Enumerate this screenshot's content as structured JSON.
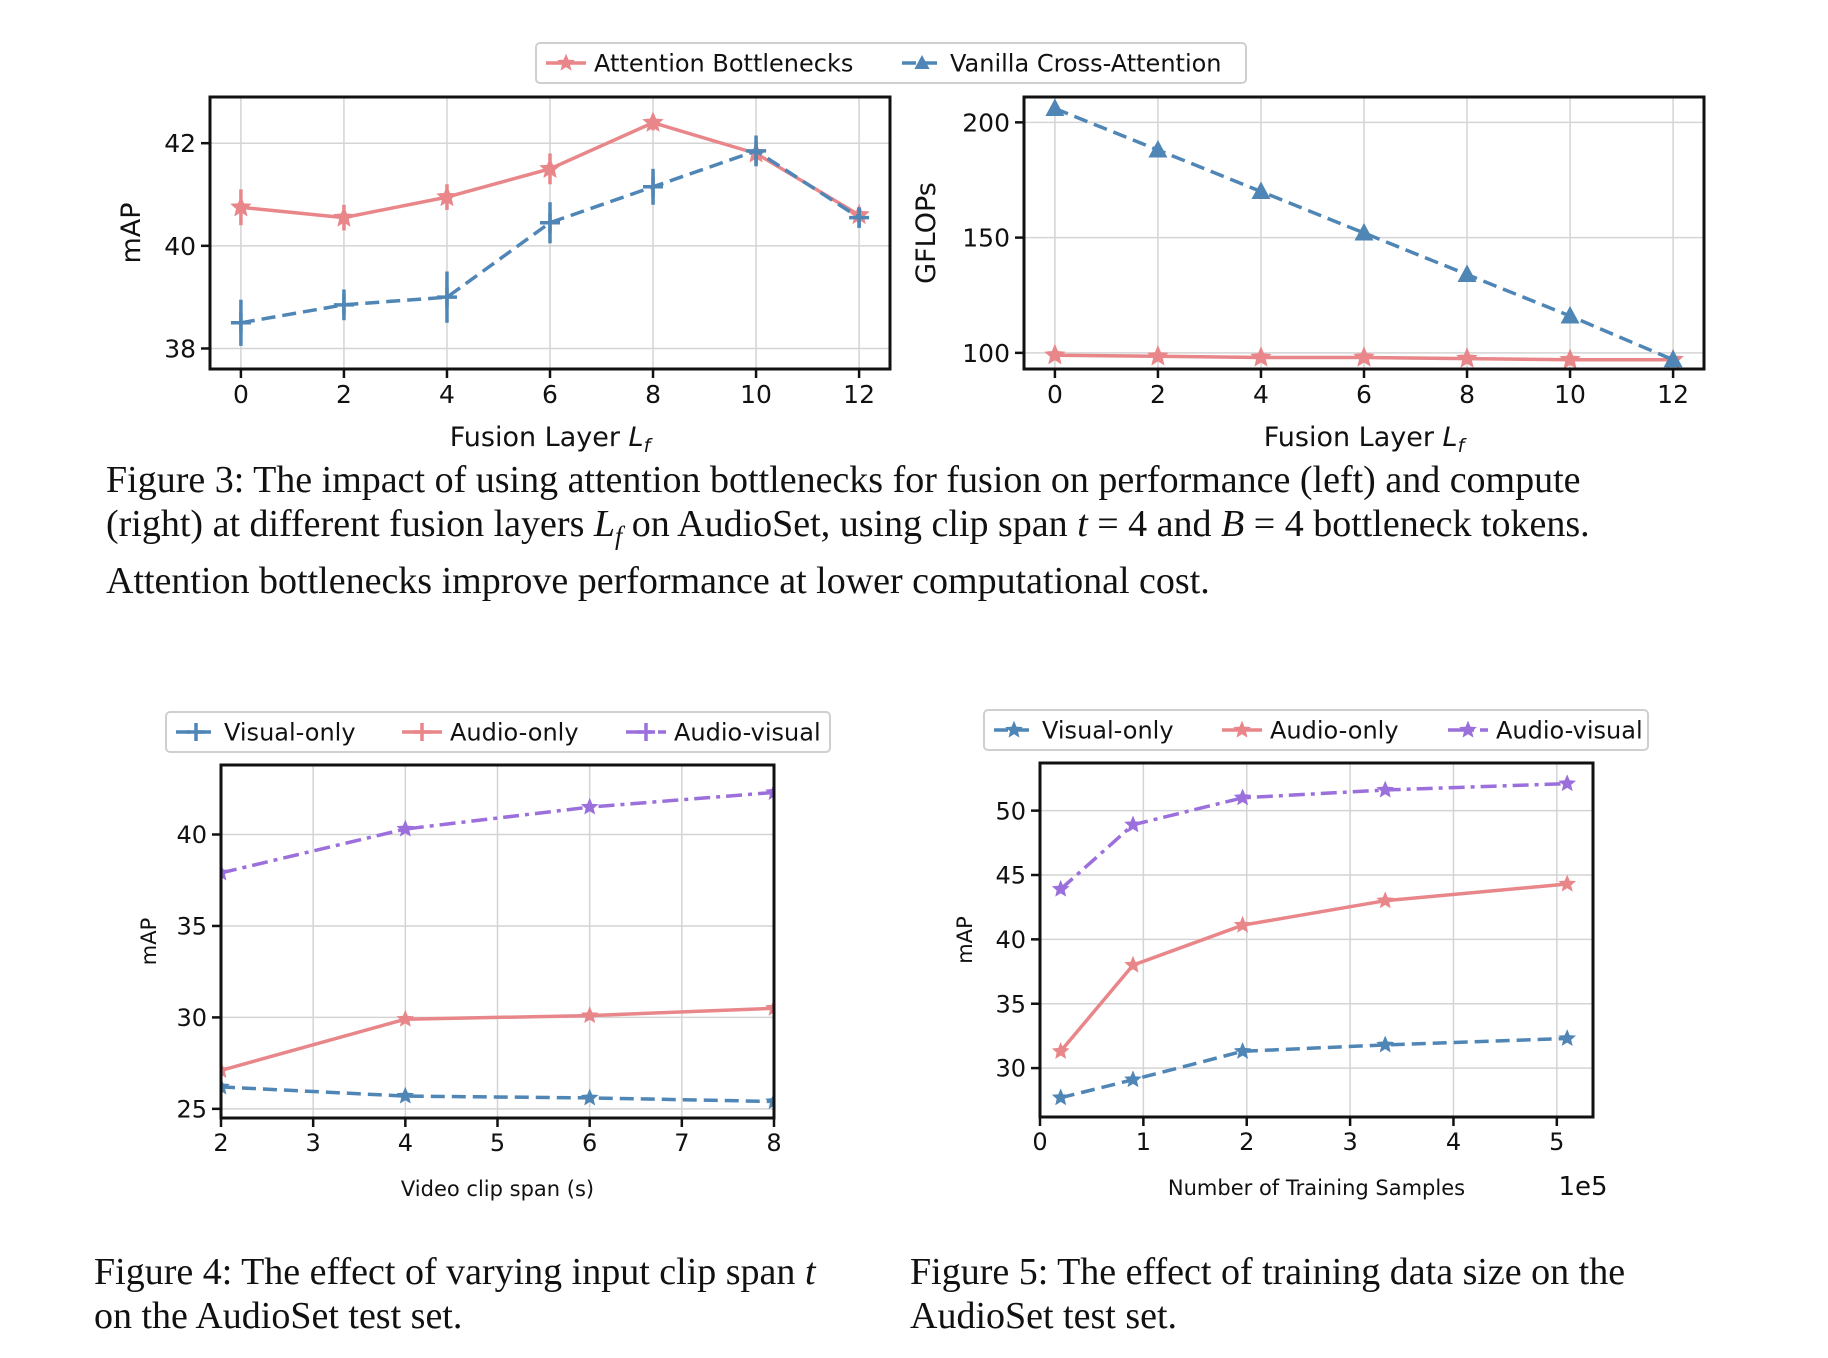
{
  "chart_data": [
    {
      "type": "line",
      "id": "fig3-left",
      "xlabel": "Fusion Layer L_f",
      "ylabel": "mAP",
      "x": [
        0,
        2,
        4,
        6,
        8,
        10,
        12
      ],
      "xticks": [
        "0",
        "2",
        "4",
        "6",
        "8",
        "10",
        "12"
      ],
      "yticks": [
        "38",
        "40",
        "42"
      ],
      "xlim": [
        -0.6,
        12.6
      ],
      "ylim": [
        37.6,
        42.9
      ],
      "grid": true,
      "legend": "top-center-shared",
      "series": [
        {
          "name": "Attention Bottlenecks",
          "values": [
            40.75,
            40.55,
            40.95,
            41.5,
            42.4,
            41.8,
            40.6
          ],
          "err": [
            0.35,
            0.25,
            0.25,
            0.3,
            0.15,
            0.2,
            0.15
          ],
          "color": "#e8868a",
          "marker": "star",
          "dash": "solid"
        },
        {
          "name": "Vanilla Cross-Attention",
          "values": [
            38.5,
            38.85,
            39.0,
            40.45,
            41.15,
            41.85,
            40.55
          ],
          "err": [
            0.45,
            0.3,
            0.5,
            0.4,
            0.35,
            0.3,
            0.2
          ],
          "color": "#4f86b5",
          "marker": "cross",
          "dash": "dashed"
        }
      ]
    },
    {
      "type": "line",
      "id": "fig3-right",
      "xlabel": "Fusion Layer L_f",
      "ylabel": "GFLOPs",
      "x": [
        0,
        2,
        4,
        6,
        8,
        10,
        12
      ],
      "xticks": [
        "0",
        "2",
        "4",
        "6",
        "8",
        "10",
        "12"
      ],
      "yticks": [
        "100",
        "150",
        "200"
      ],
      "xlim": [
        -0.6,
        12.6
      ],
      "ylim": [
        93,
        211
      ],
      "grid": true,
      "series": [
        {
          "name": "Attention Bottlenecks",
          "values": [
            99.0,
            98.5,
            98.0,
            98.0,
            97.5,
            97.0,
            97.0
          ],
          "color": "#e8868a",
          "marker": "star",
          "dash": "solid"
        },
        {
          "name": "Vanilla Cross-Attention",
          "values": [
            206,
            188,
            170,
            152,
            134,
            116,
            97
          ],
          "color": "#4f86b5",
          "marker": "triangle",
          "dash": "dashed"
        }
      ]
    },
    {
      "type": "line",
      "id": "fig4",
      "xlabel": "Video clip span (s)",
      "ylabel": "mAP",
      "x": [
        2,
        4,
        6,
        8
      ],
      "xticks": [
        "2",
        "3",
        "4",
        "5",
        "6",
        "7",
        "8"
      ],
      "xtick_values": [
        2,
        3,
        4,
        5,
        6,
        7,
        8
      ],
      "yticks": [
        "25",
        "30",
        "35",
        "40"
      ],
      "xlim": [
        2,
        8
      ],
      "ylim": [
        24.5,
        43.8
      ],
      "grid": true,
      "legend": "top-left",
      "series": [
        {
          "name": "Visual-only",
          "values": [
            26.2,
            25.7,
            25.6,
            25.4
          ],
          "color": "#4f86b5",
          "marker": "star",
          "dash": "dashed"
        },
        {
          "name": "Audio-only",
          "values": [
            27.1,
            29.9,
            30.1,
            30.5
          ],
          "color": "#e8868a",
          "marker": "star",
          "dash": "solid"
        },
        {
          "name": "Audio-visual",
          "values": [
            37.9,
            40.3,
            41.5,
            42.3
          ],
          "color": "#9b6fdc",
          "marker": "star",
          "dash": "dashdot"
        }
      ]
    },
    {
      "type": "line",
      "id": "fig5",
      "xlabel": "Number of Training Samples",
      "x_multiplier_label": "1e5",
      "ylabel": "mAP",
      "x": [
        0.2,
        0.9,
        1.96,
        3.34,
        5.1
      ],
      "xticks": [
        "0",
        "1",
        "2",
        "3",
        "4",
        "5"
      ],
      "xtick_values": [
        0,
        1,
        2,
        3,
        4,
        5
      ],
      "yticks": [
        "30",
        "35",
        "40",
        "45",
        "50"
      ],
      "xlim": [
        0,
        5.35
      ],
      "ylim": [
        26.2,
        53.7
      ],
      "grid": true,
      "legend": "top-center",
      "series": [
        {
          "name": "Visual-only",
          "values": [
            27.7,
            29.1,
            31.3,
            31.8,
            32.3
          ],
          "color": "#4f86b5",
          "marker": "star",
          "dash": "dashed"
        },
        {
          "name": "Audio-only",
          "values": [
            31.3,
            38.0,
            41.1,
            43.0,
            44.3
          ],
          "color": "#e8868a",
          "marker": "star",
          "dash": "solid"
        },
        {
          "name": "Audio-visual",
          "values": [
            43.9,
            48.9,
            51.0,
            51.6,
            52.1
          ],
          "color": "#9b6fdc",
          "marker": "star",
          "dash": "dashdot"
        }
      ]
    }
  ],
  "captions": {
    "fig3": {
      "line1": "Figure 3: The impact of using attention bottlenecks for fusion on performance (left) and compute",
      "line2a": "(right) at different fusion layers ",
      "line2b": "L",
      "line2c": "f",
      "line2d": " on AudioSet, using clip span ",
      "line2e": "t",
      "line2f": " = 4 and ",
      "line2g": "B",
      "line2h": " = 4 bottleneck tokens.",
      "line3": "Attention bottlenecks improve performance at lower computational cost."
    },
    "fig4": {
      "line1a": "Figure 4: The effect of varying input clip span ",
      "line1b": "t",
      "line2": "on the AudioSet test set."
    },
    "fig5": {
      "line1": "Figure 5: The effect of training data size on the",
      "line2": "AudioSet test set."
    }
  }
}
